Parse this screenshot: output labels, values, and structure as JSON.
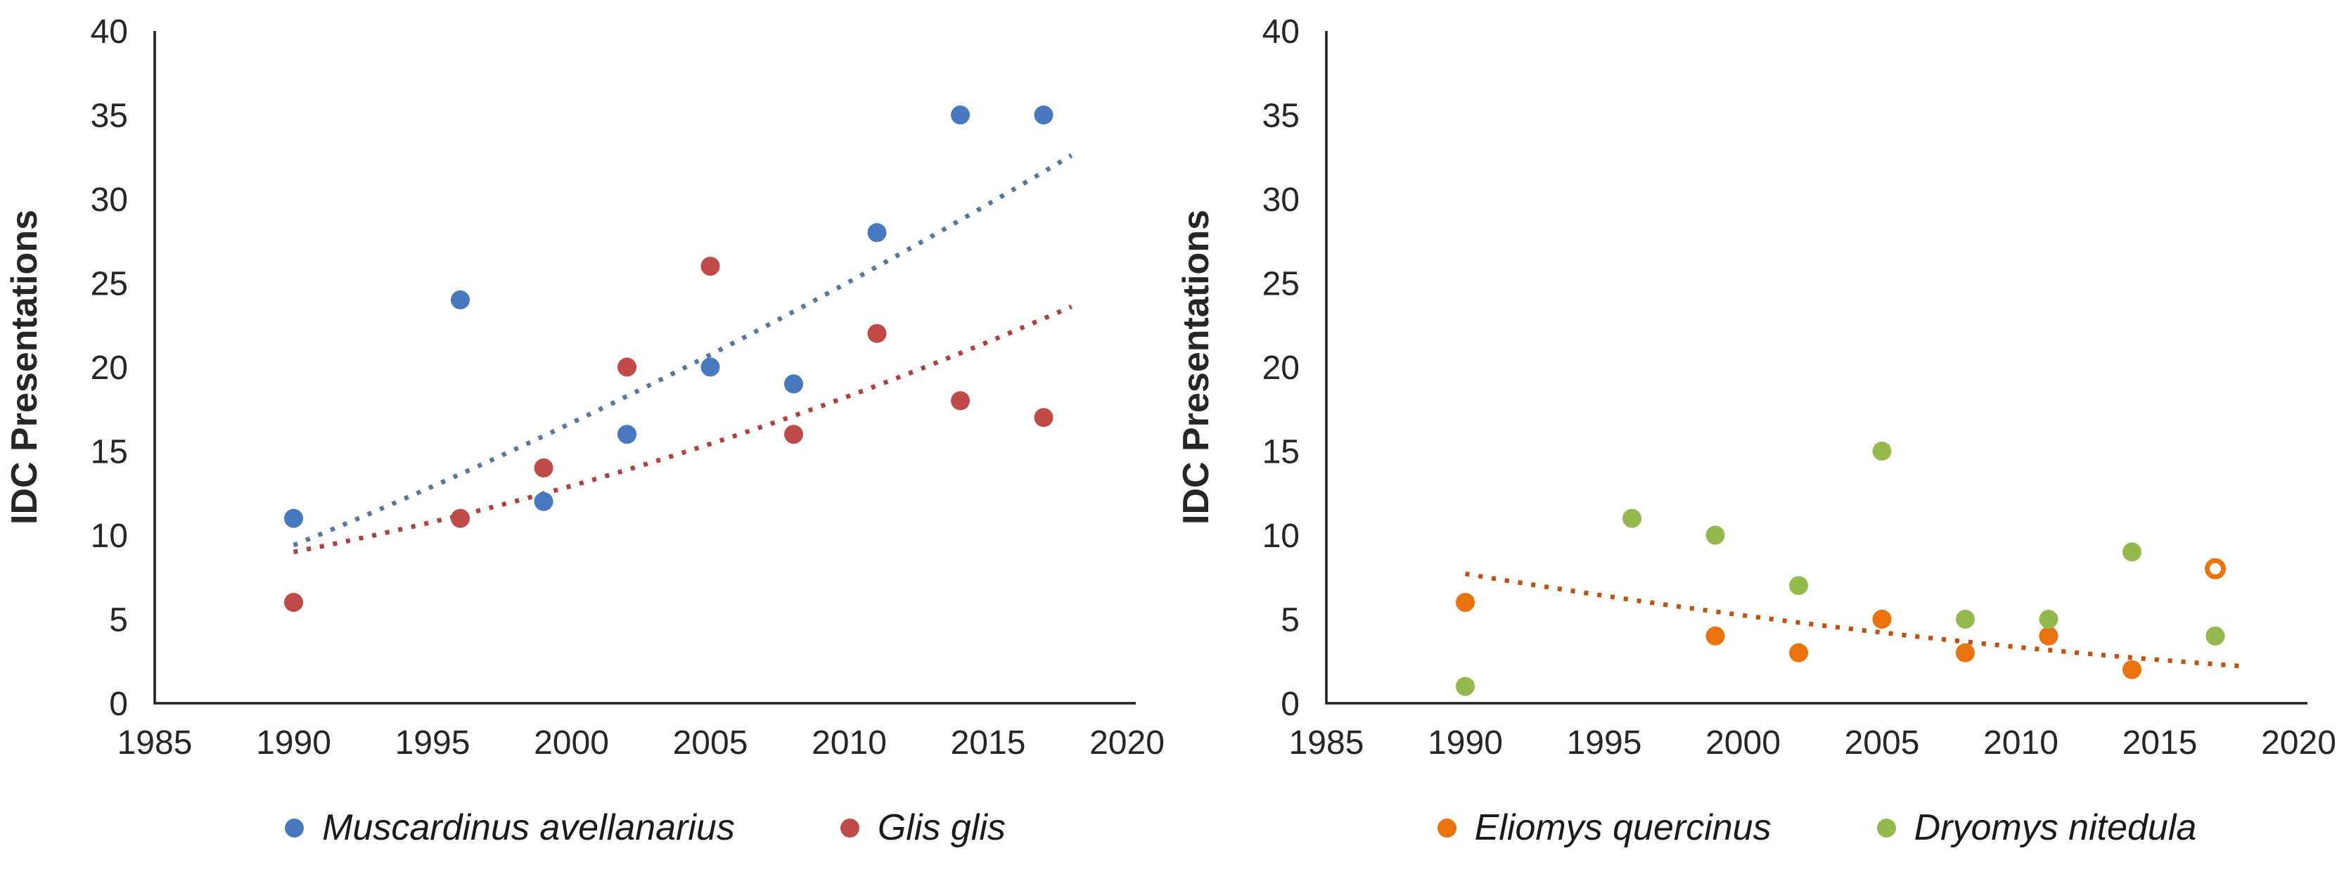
{
  "figure": {
    "description": "Two scatter charts of IDC Presentations by year for four dormouse species",
    "axis_color": "#1f1f1f",
    "text_color": "#262626"
  },
  "chart_data": [
    {
      "type": "scatter",
      "title": "",
      "xlabel": "",
      "ylabel": "IDC Presentations",
      "xlim": [
        1985,
        2020
      ],
      "ylim": [
        0,
        40
      ],
      "x_ticks": [
        1985,
        1990,
        1995,
        2000,
        2005,
        2010,
        2015,
        2020
      ],
      "y_ticks": [
        0,
        5,
        10,
        15,
        20,
        25,
        30,
        35,
        40
      ],
      "grid": false,
      "legend_position": "bottom",
      "series": [
        {
          "name": "Muscardinus avellanarius",
          "color": "#4878BD",
          "marker": "circle-filled",
          "points": [
            {
              "x": 1990,
              "y": 11
            },
            {
              "x": 1996,
              "y": 24
            },
            {
              "x": 1999,
              "y": 12
            },
            {
              "x": 2002,
              "y": 16
            },
            {
              "x": 2005,
              "y": 20
            },
            {
              "x": 2008,
              "y": 19
            },
            {
              "x": 2011,
              "y": 28
            },
            {
              "x": 2014,
              "y": 35
            },
            {
              "x": 2017,
              "y": 35
            }
          ]
        },
        {
          "name": "Glis glis",
          "color": "#BE4B48",
          "marker": "circle-filled",
          "points": [
            {
              "x": 1990,
              "y": 6
            },
            {
              "x": 1996,
              "y": 11
            },
            {
              "x": 1999,
              "y": 14
            },
            {
              "x": 2002,
              "y": 20
            },
            {
              "x": 2005,
              "y": 26
            },
            {
              "x": 2008,
              "y": 16
            },
            {
              "x": 2011,
              "y": 22
            },
            {
              "x": 2014,
              "y": 18
            },
            {
              "x": 2017,
              "y": 17
            }
          ]
        }
      ],
      "trendlines": [
        {
          "series": "Muscardinus avellanarius",
          "style": "dotted",
          "color": "#56779E",
          "x": [
            1990,
            2004,
            2018
          ],
          "y": [
            9.4,
            19.9,
            32.6
          ]
        },
        {
          "series": "Glis glis",
          "style": "dotted",
          "color": "#AA4340",
          "x": [
            1990,
            2004,
            2018
          ],
          "y": [
            9.0,
            14.9,
            23.6
          ]
        }
      ]
    },
    {
      "type": "scatter",
      "title": "",
      "xlabel": "",
      "ylabel": "IDC Presentations",
      "xlim": [
        1985,
        2020
      ],
      "ylim": [
        0,
        40
      ],
      "x_ticks": [
        1985,
        1990,
        1995,
        2000,
        2005,
        2010,
        2015,
        2020
      ],
      "y_ticks": [
        0,
        5,
        10,
        15,
        20,
        25,
        30,
        35,
        40
      ],
      "grid": false,
      "legend_position": "bottom",
      "series": [
        {
          "name": "Eliomys quercinus",
          "color": "#E8730F",
          "marker": "circle-filled",
          "points": [
            {
              "x": 1990,
              "y": 6
            },
            {
              "x": 1999,
              "y": 4
            },
            {
              "x": 2002,
              "y": 3
            },
            {
              "x": 2005,
              "y": 5
            },
            {
              "x": 2008,
              "y": 3
            },
            {
              "x": 2011,
              "y": 4
            },
            {
              "x": 2014,
              "y": 2
            },
            {
              "x": 2017,
              "y": 8,
              "open": true
            }
          ]
        },
        {
          "name": "Dryomys nitedula",
          "color": "#94BA4F",
          "marker": "circle-filled",
          "points": [
            {
              "x": 1990,
              "y": 1
            },
            {
              "x": 1996,
              "y": 11
            },
            {
              "x": 1999,
              "y": 10
            },
            {
              "x": 2002,
              "y": 7
            },
            {
              "x": 2005,
              "y": 15
            },
            {
              "x": 2008,
              "y": 5
            },
            {
              "x": 2011,
              "y": 5
            },
            {
              "x": 2014,
              "y": 9
            },
            {
              "x": 2017,
              "y": 4
            }
          ]
        }
      ],
      "trendlines": [
        {
          "series": "Eliomys quercinus",
          "style": "dotted",
          "color": "#C0500E",
          "x": [
            1990,
            2004,
            2018
          ],
          "y": [
            7.7,
            4.4,
            2.2
          ]
        }
      ]
    }
  ]
}
